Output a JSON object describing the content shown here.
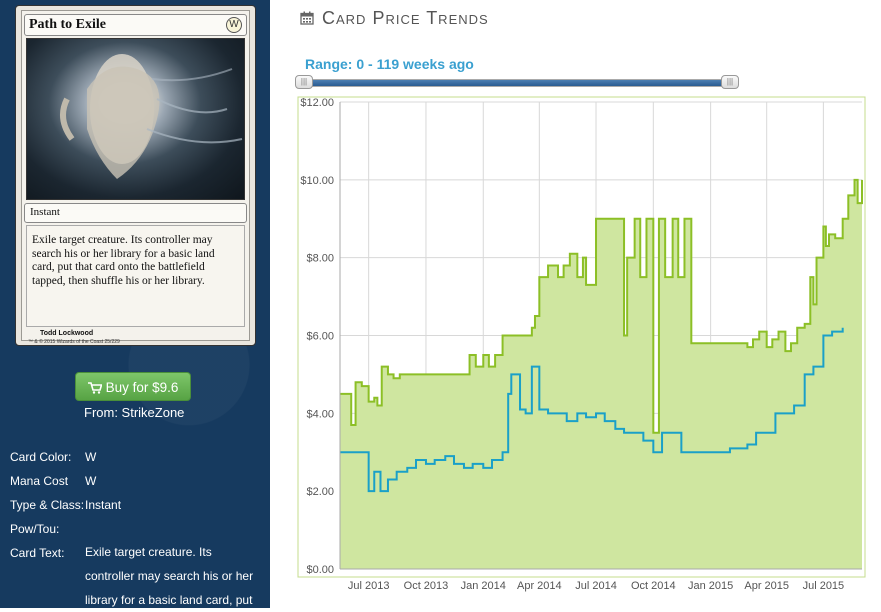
{
  "card": {
    "name": "Path to Exile",
    "mana_symbol": "W",
    "type_line": "Instant",
    "text": "Exile target creature. Its controller may search his or her library for a basic land card, put that card onto the battlefield tapped, then shuffle his or her library.",
    "artist": "Todd Lockwood",
    "copyright": "™ & © 2015 Wizards of the Coast 25/229"
  },
  "buy": {
    "label": "Buy for $9.6",
    "from": "From: StrikeZone",
    "icon": "shopping-cart-icon",
    "color": "#5fae4b"
  },
  "info": [
    {
      "label": "Card Color:",
      "value": "W"
    },
    {
      "label": "Mana Cost",
      "value": "W"
    },
    {
      "label": "Type & Class:",
      "value": "Instant"
    },
    {
      "label": "Pow/Tou:",
      "value": ""
    },
    {
      "label": "Card Text:",
      "value": "Exile target creature. Its controller may search his or her library for a basic land card, put"
    }
  ],
  "header": {
    "title": "Card Price Trends",
    "icon": "calendar-icon"
  },
  "range": {
    "label": "Range: 0 - 119 weeks ago",
    "min": 0,
    "max": 119
  },
  "chart_data": {
    "type": "area",
    "title": "",
    "xlabel": "",
    "ylabel": "",
    "x_ticks": [
      "Jul 2013",
      "Oct 2013",
      "Jan 2014",
      "Apr 2014",
      "Jul 2014",
      "Oct 2014",
      "Jan 2015",
      "Apr 2015",
      "Jul 2015"
    ],
    "y_ticks": [
      "$0.00",
      "$2.00",
      "$4.00",
      "$6.00",
      "$8.00",
      "$10.00",
      "$12.00"
    ],
    "ylim": [
      0,
      12
    ],
    "xlim": [
      "2013-05-16",
      "2015-09-01"
    ],
    "grid": true,
    "legend": "none",
    "colors": {
      "retail": "#8cbf26",
      "retail_fill": "#cfe6a0",
      "buylist": "#1aa0c8"
    },
    "series": [
      {
        "x": [
          "2013-05-16",
          "2013-06-01",
          "2013-06-03",
          "2013-06-10",
          "2013-06-20",
          "2013-07-01",
          "2013-07-10",
          "2013-07-15",
          "2013-07-22",
          "2013-08-01",
          "2013-08-10",
          "2013-08-20",
          "2013-09-01",
          "2013-09-15",
          "2013-10-01",
          "2013-10-15",
          "2013-11-01",
          "2013-11-15",
          "2013-12-01",
          "2013-12-10",
          "2013-12-20",
          "2014-01-01",
          "2014-01-10",
          "2014-01-20",
          "2014-02-01",
          "2014-02-15",
          "2014-03-01",
          "2014-03-10",
          "2014-03-20",
          "2014-03-25",
          "2014-04-01",
          "2014-04-15",
          "2014-05-01",
          "2014-05-10",
          "2014-05-20",
          "2014-06-01",
          "2014-06-10",
          "2014-06-15",
          "2014-07-01",
          "2014-07-15",
          "2014-08-01",
          "2014-08-10",
          "2014-08-15",
          "2014-08-20",
          "2014-09-01",
          "2014-09-10",
          "2014-09-20",
          "2014-10-01",
          "2014-10-10",
          "2014-10-20",
          "2014-11-01",
          "2014-11-10",
          "2014-11-20",
          "2014-12-01",
          "2014-12-15",
          "2015-01-01",
          "2015-01-15",
          "2015-02-01",
          "2015-02-15",
          "2015-03-01",
          "2015-03-10",
          "2015-03-20",
          "2015-04-01",
          "2015-04-10",
          "2015-04-20",
          "2015-05-01",
          "2015-05-10",
          "2015-05-20",
          "2015-06-01",
          "2015-06-10",
          "2015-06-15",
          "2015-06-20",
          "2015-07-01",
          "2015-07-05",
          "2015-07-10",
          "2015-07-20",
          "2015-08-01",
          "2015-08-10",
          "2015-08-20",
          "2015-08-25",
          "2015-09-01"
        ],
        "values": [
          4.5,
          4.5,
          3.7,
          4.8,
          4.7,
          4.3,
          4.4,
          4.2,
          5.2,
          5.0,
          4.9,
          5.0,
          5.0,
          5.0,
          5.0,
          5.0,
          5.0,
          5.0,
          5.0,
          5.5,
          5.2,
          5.5,
          5.2,
          5.5,
          6.0,
          6.0,
          6.0,
          6.0,
          6.2,
          6.5,
          7.5,
          7.8,
          7.5,
          7.8,
          8.1,
          7.5,
          8.0,
          7.3,
          9.0,
          9.0,
          9.0,
          9.0,
          6.0,
          8.0,
          9.0,
          7.5,
          9.0,
          3.5,
          9.0,
          7.5,
          9.0,
          7.5,
          9.0,
          5.8,
          5.8,
          5.8,
          5.8,
          5.8,
          5.8,
          5.7,
          5.9,
          6.1,
          5.7,
          5.9,
          6.1,
          5.6,
          5.8,
          6.2,
          6.3,
          7.5,
          6.8,
          8.0,
          8.8,
          8.3,
          8.6,
          8.5,
          9.0,
          9.6,
          10.0,
          9.4,
          10.0
        ]
      },
      {
        "x": [
          "2013-05-16",
          "2013-06-01",
          "2013-07-01",
          "2013-07-10",
          "2013-07-20",
          "2013-08-01",
          "2013-08-15",
          "2013-09-01",
          "2013-09-15",
          "2013-10-01",
          "2013-10-15",
          "2013-11-01",
          "2013-11-15",
          "2013-12-01",
          "2013-12-15",
          "2014-01-01",
          "2014-01-15",
          "2014-02-01",
          "2014-02-10",
          "2014-02-15",
          "2014-03-01",
          "2014-03-10",
          "2014-03-20",
          "2014-04-01",
          "2014-04-15",
          "2014-05-01",
          "2014-05-15",
          "2014-06-01",
          "2014-06-15",
          "2014-07-01",
          "2014-07-15",
          "2014-08-01",
          "2014-08-15",
          "2014-09-01",
          "2014-09-15",
          "2014-10-01",
          "2014-10-15",
          "2014-11-01",
          "2014-11-15",
          "2014-12-01",
          "2014-12-15",
          "2015-01-01",
          "2015-01-15",
          "2015-02-01",
          "2015-02-15",
          "2015-03-01",
          "2015-03-15",
          "2015-04-01",
          "2015-04-15",
          "2015-05-01",
          "2015-05-15",
          "2015-06-01",
          "2015-06-15",
          "2015-07-01",
          "2015-07-15",
          "2015-08-01"
        ],
        "values": [
          3.0,
          3.0,
          2.0,
          2.5,
          2.0,
          2.3,
          2.5,
          2.6,
          2.8,
          2.7,
          2.8,
          2.9,
          2.7,
          2.6,
          2.7,
          2.6,
          2.8,
          3.0,
          4.5,
          5.0,
          4.1,
          4.0,
          5.2,
          4.1,
          4.0,
          4.0,
          3.8,
          4.0,
          3.9,
          4.0,
          3.8,
          3.6,
          3.5,
          3.5,
          3.3,
          3.0,
          3.5,
          3.5,
          3.0,
          3.0,
          3.0,
          3.0,
          3.0,
          3.1,
          3.1,
          3.2,
          3.5,
          3.5,
          4.0,
          4.0,
          4.2,
          5.0,
          5.2,
          6.0,
          6.1,
          6.2
        ]
      }
    ]
  }
}
